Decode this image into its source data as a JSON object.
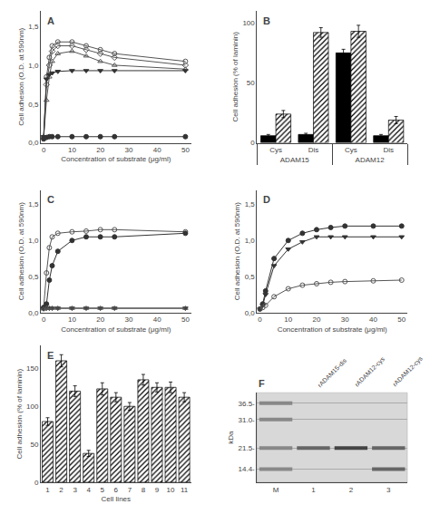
{
  "chart_data": [
    {
      "type": "line",
      "title": "A",
      "xlabel": "Concentration of substrate (μg/ml)",
      "ylabel": "Cell adhesion (O.D. at 590nm)",
      "x": [
        0,
        1,
        2,
        3,
        5,
        10,
        15,
        20,
        25,
        50
      ],
      "series": [
        {
          "color": "#555555",
          "marker": "circle-open",
          "values": [
            0.07,
            0.85,
            1.1,
            1.25,
            1.3,
            1.3,
            1.25,
            1.2,
            1.15,
            1.05
          ]
        },
        {
          "color": "#555555",
          "marker": "diamond-open",
          "values": [
            0.07,
            0.75,
            1.0,
            1.18,
            1.25,
            1.25,
            1.2,
            1.15,
            1.1,
            1.0
          ]
        },
        {
          "color": "#555555",
          "marker": "triangle-up-open",
          "values": [
            0.07,
            0.55,
            0.85,
            1.05,
            1.15,
            1.18,
            1.12,
            1.05,
            1.0,
            0.95
          ]
        },
        {
          "color": "#333333",
          "marker": "triangle-down",
          "values": [
            0.08,
            0.82,
            0.88,
            0.9,
            0.92,
            0.93,
            0.93,
            0.93,
            0.93,
            0.93
          ]
        },
        {
          "color": "#333333",
          "marker": "circle",
          "values": [
            0.05,
            0.07,
            0.08,
            0.08,
            0.08,
            0.08,
            0.08,
            0.08,
            0.08,
            0.08
          ]
        }
      ],
      "xlim": [
        -1,
        52
      ],
      "xticks": [
        0,
        10,
        20,
        30,
        40,
        50
      ],
      "ylim": [
        0.0,
        1.7
      ],
      "yticks": [
        {
          "value": 0.0,
          "label": "0,0"
        },
        {
          "value": 0.5,
          "label": "0,5"
        },
        {
          "value": 1.0,
          "label": "1,0"
        },
        {
          "value": 1.5,
          "label": "1,5"
        }
      ],
      "grid": false
    },
    {
      "type": "bar",
      "title": "B",
      "ylabel": "Cell adhesion (% of laminin)",
      "groups": [
        {
          "label": "ADAM15",
          "categories": [
            "Cys",
            "Dis"
          ]
        },
        {
          "label": "ADAM12",
          "categories": [
            "Cys",
            "Dis"
          ]
        }
      ],
      "series": [
        {
          "color": "#000000",
          "values": [
            6,
            7,
            75,
            6
          ],
          "errors": [
            1,
            1,
            3,
            1
          ]
        },
        {
          "color": "#ffffff",
          "marker": "hatched",
          "values": [
            24,
            92,
            93,
            19
          ],
          "errors": [
            3,
            4,
            5,
            3
          ]
        }
      ],
      "ylim": [
        0,
        110
      ],
      "yticks": [
        0,
        50,
        100
      ],
      "grid": false
    },
    {
      "type": "line",
      "title": "C",
      "xlabel": "Concentration of substrate (μg/ml)",
      "ylabel": "Cell adhesion (O.D. at 590nm)",
      "x": [
        0,
        1,
        2,
        3,
        5,
        10,
        15,
        20,
        25,
        50
      ],
      "series": [
        {
          "color": "#555555",
          "marker": "circle-open",
          "values": [
            0.07,
            0.55,
            0.9,
            1.05,
            1.1,
            1.12,
            1.13,
            1.15,
            1.15,
            1.12
          ]
        },
        {
          "color": "#333333",
          "marker": "circle",
          "values": [
            0.07,
            0.12,
            0.45,
            0.65,
            0.85,
            1.0,
            1.05,
            1.05,
            1.05,
            1.1
          ]
        },
        {
          "color": "#333333",
          "marker": "triangle-down",
          "values": [
            0.05,
            0.06,
            0.06,
            0.06,
            0.06,
            0.06,
            0.06,
            0.06,
            0.06,
            0.06
          ]
        },
        {
          "color": "#555555",
          "marker": "triangle-up-open",
          "values": [
            0.05,
            0.06,
            0.06,
            0.06,
            0.06,
            0.06,
            0.06,
            0.06,
            0.06,
            0.06
          ]
        }
      ],
      "xlim": [
        -1,
        52
      ],
      "xticks": [
        0,
        10,
        20,
        30,
        40,
        50
      ],
      "ylim": [
        0.0,
        1.7
      ],
      "yticks": [
        {
          "value": 0.0,
          "label": "0,0"
        },
        {
          "value": 0.5,
          "label": "0,5"
        },
        {
          "value": 1.0,
          "label": "1,0"
        },
        {
          "value": 1.5,
          "label": "1,5"
        }
      ],
      "grid": false
    },
    {
      "type": "line",
      "title": "D",
      "xlabel": "Concentration of substrate (μg/ml)",
      "ylabel": "Cell adhesion (O.D. at 590nm)",
      "x": [
        0,
        1,
        2,
        5,
        10,
        15,
        20,
        25,
        30,
        40,
        50
      ],
      "series": [
        {
          "color": "#333333",
          "marker": "circle",
          "values": [
            0.05,
            0.12,
            0.3,
            0.75,
            1.0,
            1.1,
            1.15,
            1.18,
            1.2,
            1.2,
            1.2
          ]
        },
        {
          "color": "#333333",
          "marker": "triangle-down",
          "values": [
            0.05,
            0.1,
            0.25,
            0.65,
            0.88,
            0.98,
            1.05,
            1.05,
            1.05,
            1.05,
            1.05
          ]
        },
        {
          "color": "#555555",
          "marker": "circle-open",
          "values": [
            0.05,
            0.07,
            0.1,
            0.22,
            0.33,
            0.38,
            0.4,
            0.42,
            0.43,
            0.44,
            0.45
          ]
        }
      ],
      "xlim": [
        -1,
        52
      ],
      "xticks": [
        0,
        10,
        20,
        30,
        40,
        50
      ],
      "ylim": [
        0.0,
        1.7
      ],
      "yticks": [
        {
          "value": 0.0,
          "label": "0,0"
        },
        {
          "value": 0.5,
          "label": "0,5"
        },
        {
          "value": 1.0,
          "label": "1,0"
        },
        {
          "value": 1.5,
          "label": "1,5"
        }
      ],
      "grid": false
    },
    {
      "type": "bar",
      "title": "E",
      "xlabel": "Cell lines",
      "ylabel": "Cell adhesion (% of laminin)",
      "categories": [
        "1",
        "2",
        "3",
        "4",
        "5",
        "6",
        "7",
        "8",
        "9",
        "10",
        "11"
      ],
      "series": [
        {
          "color": "#ffffff",
          "marker": "hatched",
          "values": [
            80,
            160,
            120,
            38,
            123,
            112,
            100,
            135,
            125,
            125,
            112
          ],
          "errors": [
            5,
            8,
            7,
            4,
            8,
            6,
            5,
            7,
            6,
            7,
            6
          ]
        }
      ],
      "ylim": [
        0,
        180
      ],
      "yticks": [
        0,
        50,
        100,
        150
      ],
      "grid": false
    },
    {
      "type": "gel",
      "title": "F",
      "ylabel": "kDa",
      "categories": [
        "M",
        "1",
        "2",
        "3"
      ],
      "column_labels": [
        null,
        "rADAM15-dis",
        "rADAM12-cys",
        "rADAM12-cys"
      ],
      "bands": [
        {
          "lane": "M",
          "kda": 36.5,
          "color": "#888888"
        },
        {
          "lane": "M",
          "kda": 31.0,
          "color": "#888888"
        },
        {
          "lane": "M",
          "kda": 21.5,
          "color": "#888888"
        },
        {
          "lane": "M",
          "kda": 14.4,
          "color": "#888888"
        },
        {
          "lane": "1",
          "kda": 21.5,
          "color": "#666666"
        },
        {
          "lane": "2",
          "kda": 21.5,
          "color": "#444444"
        },
        {
          "lane": "3",
          "kda": 21.5,
          "color": "#666666"
        },
        {
          "lane": "3",
          "kda": 14.4,
          "color": "#666666"
        }
      ],
      "ylim": [
        10,
        40
      ],
      "yticks": [
        {
          "value": 36.5,
          "label": "36.5-"
        },
        {
          "value": 31.0,
          "label": "31.0-"
        },
        {
          "value": 21.5,
          "label": "21.5-"
        },
        {
          "value": 14.4,
          "label": "14.4-"
        }
      ],
      "grid": true
    }
  ]
}
